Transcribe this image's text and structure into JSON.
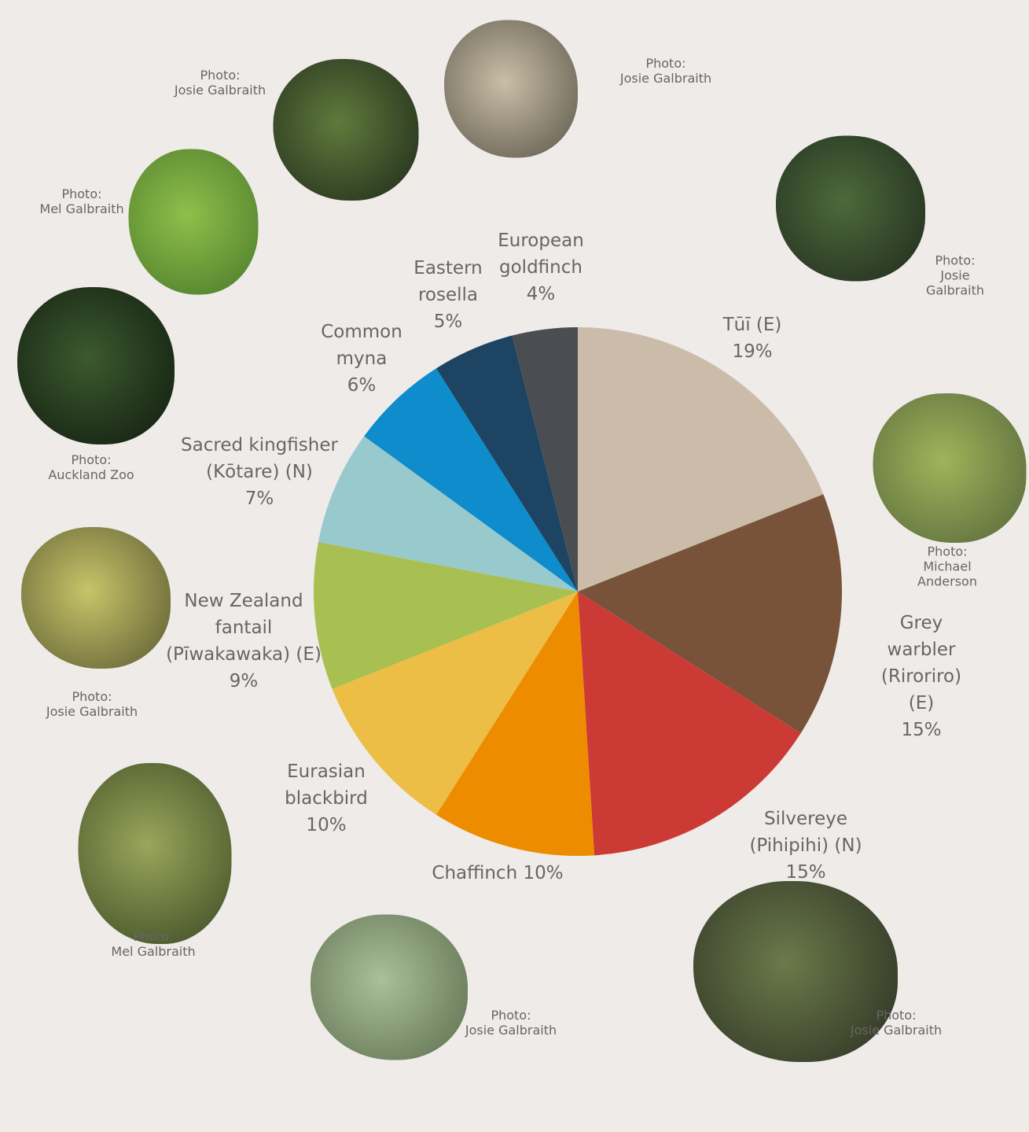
{
  "chart_data": {
    "type": "pie",
    "categories": [
      "Tūī (E)",
      "Grey warbler\n(Riroriro) (E)",
      "Silvereye\n(Pihipihi) (N)",
      "Chaffinch",
      "Eurasian\nblackbird",
      "New Zealand\nfantail\n(Pīwakawaka) (E)",
      "Sacred kingfisher\n(Kōtare) (N)",
      "Common\nmyna",
      "Eastern\nrosella",
      "European\ngoldfinch"
    ],
    "values": [
      19,
      15,
      15,
      10,
      10,
      9,
      7,
      6,
      5,
      4
    ],
    "value_labels": [
      "19%",
      "15%",
      "15%",
      "10%",
      "10%",
      "9%",
      "7%",
      "6%",
      "5%",
      "4%"
    ],
    "colors": [
      "#cbbcaa",
      "#78533a",
      "#cc3a36",
      "#ee8c00",
      "#ecbe45",
      "#a8bf52",
      "#97c9cd",
      "#0e8ccb",
      "#1d4563",
      "#4a4e53"
    ],
    "annotations": [
      "Photo:\nJosie Galbraith",
      "Photo:\nMichael Anderson",
      "Photo:\nJosie Galbraith",
      "Photo:\nJosie Galbraith",
      "Photo:\nMel Galbraith",
      "Photo:\nJosie Galbraith",
      "Photo:\nAuckland Zoo",
      "Photo:\nMel Galbraith",
      "Photo:\nJosie Galbraith",
      "Photo:\nJosie Galbraith"
    ]
  }
}
